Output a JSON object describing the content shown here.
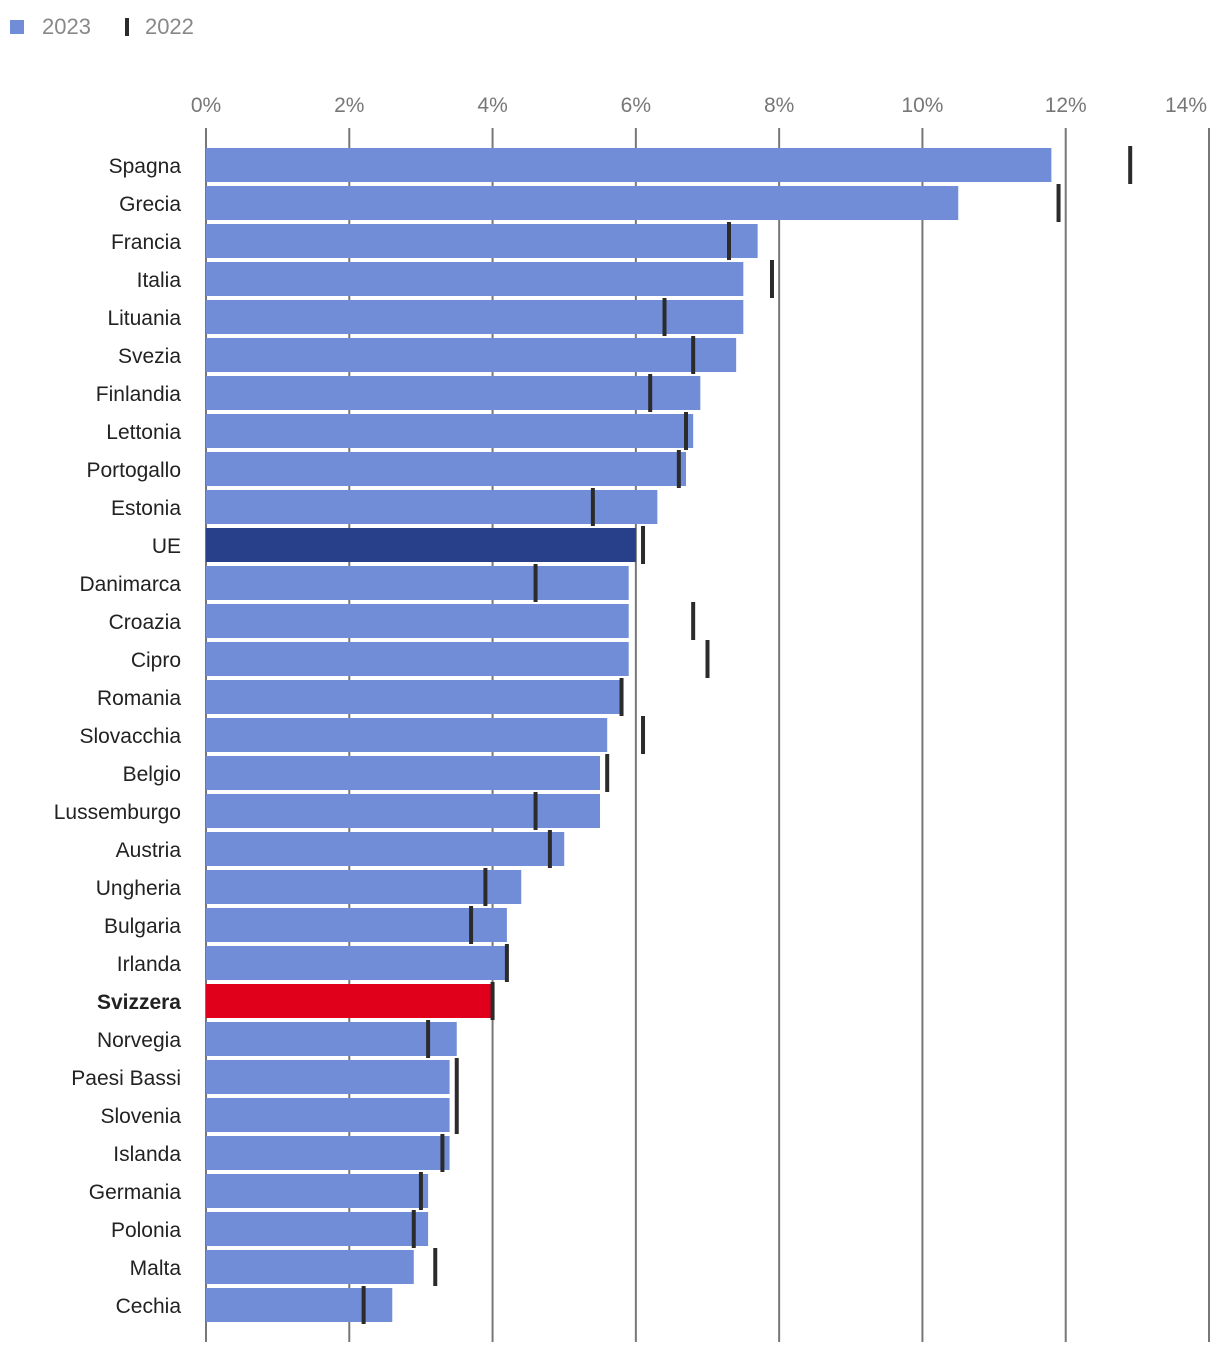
{
  "colors": {
    "bar": "#728dd8",
    "highlight_ue": "#283f8a",
    "highlight_ch": "#e0001b",
    "marker": "#2b2b2b",
    "grid": "#777777"
  },
  "chart_data": {
    "type": "bar",
    "orientation": "horizontal",
    "title": "",
    "xlabel": "",
    "ylabel": "",
    "xlim": [
      0,
      14
    ],
    "ticks": [
      0,
      2,
      4,
      6,
      8,
      10,
      12,
      14
    ],
    "tick_suffix": "%",
    "grid": true,
    "legend_position": "top-left",
    "legend": [
      {
        "name": "2023",
        "style": "bar"
      },
      {
        "name": "2022",
        "style": "marker"
      }
    ],
    "categories": [
      "Spagna",
      "Grecia",
      "Francia",
      "Italia",
      "Lituania",
      "Svezia",
      "Finlandia",
      "Lettonia",
      "Portogallo",
      "Estonia",
      "UE",
      "Danimarca",
      "Croazia",
      "Cipro",
      "Romania",
      "Slovacchia",
      "Belgio",
      "Lussemburgo",
      "Austria",
      "Ungheria",
      "Bulgaria",
      "Irlanda",
      "Svizzera",
      "Norvegia",
      "Paesi Bassi",
      "Slovenia",
      "Islanda",
      "Germania",
      "Polonia",
      "Malta",
      "Cechia"
    ],
    "highlights": {
      "UE": "highlight_ue",
      "Svizzera": "highlight_ch"
    },
    "bold_categories": [
      "Svizzera"
    ],
    "series": [
      {
        "name": "2023",
        "values": [
          11.8,
          10.5,
          7.7,
          7.5,
          7.5,
          7.4,
          6.9,
          6.8,
          6.7,
          6.3,
          6.0,
          5.9,
          5.9,
          5.9,
          5.8,
          5.6,
          5.5,
          5.5,
          5.0,
          4.4,
          4.2,
          4.2,
          4.0,
          3.5,
          3.4,
          3.4,
          3.4,
          3.1,
          3.1,
          2.9,
          2.6
        ]
      },
      {
        "name": "2022",
        "values": [
          12.9,
          11.9,
          7.3,
          7.9,
          6.4,
          6.8,
          6.2,
          6.7,
          6.6,
          5.4,
          6.1,
          4.6,
          6.8,
          7.0,
          5.8,
          6.1,
          5.6,
          4.6,
          4.8,
          3.9,
          3.7,
          4.2,
          4.0,
          3.1,
          3.5,
          3.5,
          3.3,
          3.0,
          2.9,
          3.2,
          2.2
        ]
      }
    ]
  }
}
